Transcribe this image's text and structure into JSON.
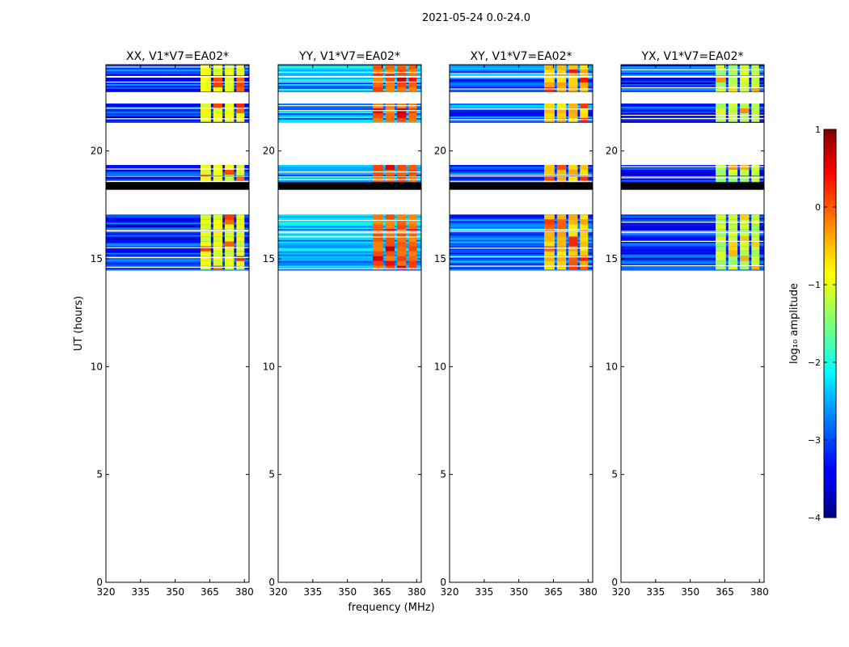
{
  "chart_data": {
    "type": "heatmap",
    "suptitle": "2021-05-24 0.0-24.0",
    "xlabel": "frequency (MHz)",
    "ylabel": "UT (hours)",
    "xlim": [
      320,
      382
    ],
    "ylim": [
      0,
      24
    ],
    "xticks": [
      320,
      335,
      350,
      365,
      380
    ],
    "yticks": [
      0,
      5,
      10,
      15,
      20
    ],
    "panels": [
      {
        "title": "XX, V1*V7=EA02*",
        "base_level": -3.2,
        "band_level": -1.0,
        "hot_level": 0.0,
        "has_ylabel": true
      },
      {
        "title": "YY, V1*V7=EA02*",
        "base_level": -2.5,
        "band_level": -0.1,
        "hot_level": 0.5,
        "has_ylabel": false
      },
      {
        "title": "XY, V1*V7=EA02*",
        "base_level": -2.9,
        "band_level": -0.6,
        "hot_level": 0.1,
        "has_ylabel": false
      },
      {
        "title": "YX, V1*V7=EA02*",
        "base_level": -3.2,
        "band_level": -1.2,
        "hot_level": -0.5,
        "has_ylabel": false
      }
    ],
    "data_blocks_ut": [
      [
        23.5,
        24.0
      ],
      [
        22.75,
        23.4
      ],
      [
        21.35,
        22.2
      ],
      [
        18.85,
        19.35
      ],
      [
        18.55,
        18.8
      ],
      [
        16.3,
        17.05
      ],
      [
        14.5,
        16.25
      ]
    ],
    "blank_bands_ut": [
      [
        18.2,
        18.55
      ]
    ],
    "band_columns_mhz": [
      [
        361,
        365.5
      ],
      [
        366.5,
        370.5
      ],
      [
        371.5,
        375.5
      ],
      [
        376.5,
        380
      ]
    ],
    "colorbar": {
      "label": "log₁₀ amplitude",
      "min": -4,
      "max": 1,
      "ticks": [
        1,
        0,
        -1,
        -2,
        -3,
        -4
      ],
      "tick_labels": [
        "1",
        "0",
        "−1",
        "−2",
        "−3",
        "−4"
      ],
      "colormap": "jet"
    }
  }
}
